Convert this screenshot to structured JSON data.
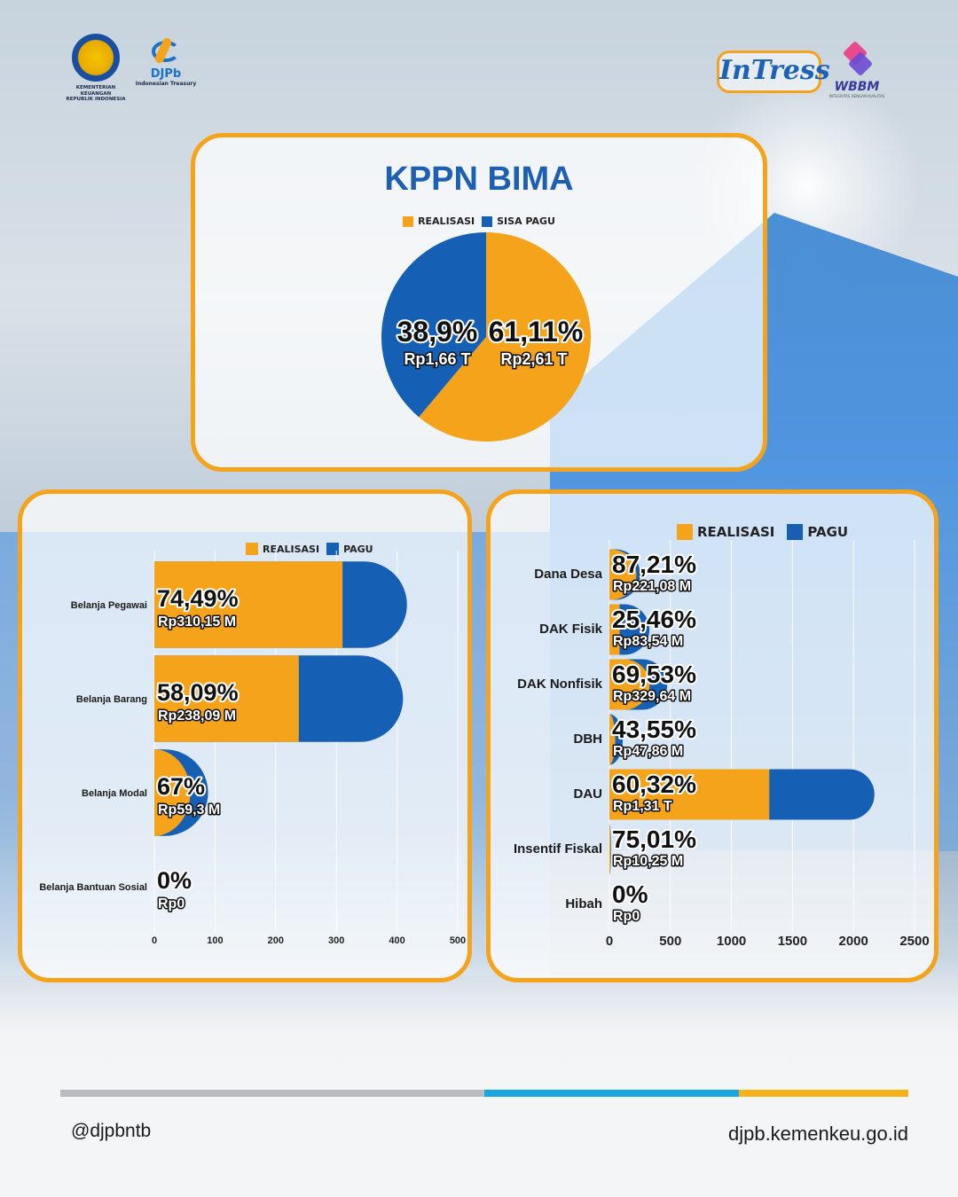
{
  "colors": {
    "realisasi": "#f5a31a",
    "pagu": "#1560b5",
    "accent": "#f5a31a",
    "title": "#1d5fb0"
  },
  "logos": {
    "kemenkeu_text": "KEMENTERIAN KEUANGAN",
    "kemenkeu_sub": "REPUBLIK INDONESIA",
    "djpb_name": "DJPb",
    "djpb_sub": "Indonesian Treasury",
    "intress": "InTress",
    "wbbm_name": "WBBM",
    "wbbm_sub": "INTEGRITAS DENGAN KUALITAS"
  },
  "chart_data": [
    {
      "type": "pie",
      "title": "KPPN BIMA",
      "legend": [
        "REALISASI",
        "SISA PAGU"
      ],
      "slices": [
        {
          "name": "REALISASI",
          "percent": 61.11,
          "percent_label": "61,11%",
          "amount_label": "Rp2,61 T"
        },
        {
          "name": "SISA PAGU",
          "percent": 38.89,
          "percent_label": "38,9%",
          "amount_label": "Rp1,66 T"
        }
      ]
    },
    {
      "type": "bar",
      "orientation": "horizontal",
      "legend": [
        "REALISASI",
        "PAGU"
      ],
      "xlim": [
        0,
        500
      ],
      "xticks": [
        "0",
        "100",
        "200",
        "300",
        "400",
        "500"
      ],
      "categories": [
        "Belanja Pegawai",
        "Belanja Barang",
        "Belanja Modal",
        "Belanja Bantuan Sosial"
      ],
      "series": [
        {
          "name": "REALISASI",
          "values": [
            310.15,
            238.09,
            59.3,
            0
          ]
        },
        {
          "name": "PAGU",
          "values": [
            416.4,
            409.9,
            88.5,
            0
          ]
        }
      ],
      "percent_labels": [
        "74,49%",
        "58,09%",
        "67%",
        "0%"
      ],
      "amount_labels": [
        "Rp310,15 M",
        "Rp238,09 M",
        "Rp59,3 M",
        "Rp0"
      ]
    },
    {
      "type": "bar",
      "orientation": "horizontal",
      "legend": [
        "REALISASI",
        "PAGU"
      ],
      "xlim": [
        0,
        2500
      ],
      "xticks": [
        "0",
        "500",
        "1000",
        "1500",
        "2000",
        "2500"
      ],
      "categories": [
        "Dana Desa",
        "DAK Fisik",
        "DAK Nonfisik",
        "DBH",
        "DAU",
        "Insentif Fiskal",
        "Hibah"
      ],
      "series": [
        {
          "name": "REALISASI",
          "values": [
            221.08,
            83.54,
            329.64,
            47.86,
            1310,
            10.25,
            0
          ]
        },
        {
          "name": "PAGU",
          "values": [
            253.5,
            328.1,
            474.1,
            109.9,
            2171.7,
            13.7,
            0
          ]
        }
      ],
      "percent_labels": [
        "87,21%",
        "25,46%",
        "69,53%",
        "43,55%",
        "60,32%",
        "75,01%",
        "0%"
      ],
      "amount_labels": [
        "Rp221,08 M",
        "Rp83,54 M",
        "Rp329,64 M",
        "Rp47,86 M",
        "Rp1,31 T",
        "Rp10,25 M",
        "Rp0"
      ]
    }
  ],
  "footer": {
    "social": "@djpbntb",
    "website": "djpb.kemenkeu.go.id"
  }
}
